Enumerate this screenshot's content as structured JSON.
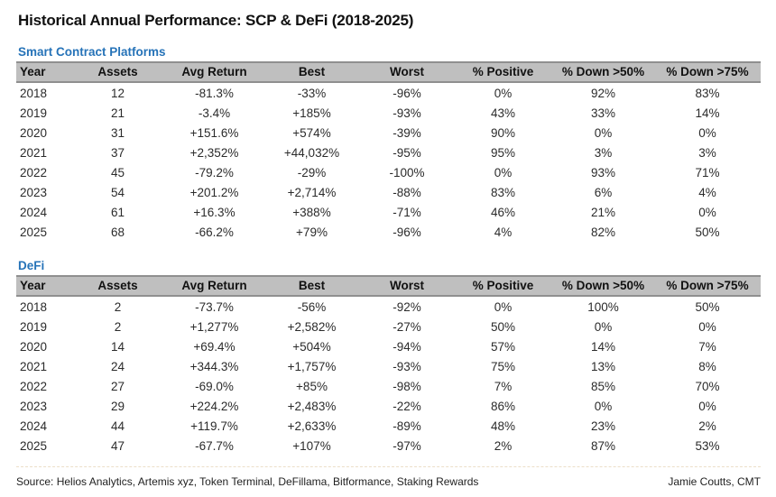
{
  "title": "Historical Annual Performance: SCP & DeFi (2018-2025)",
  "colors": {
    "section_blue": "#2673b8",
    "negative_red": "#e93e4d",
    "positive_green": "#2f9e4f",
    "header_bg": "#bfbfbf",
    "header_border": "#8f8f8f"
  },
  "chart_data": [
    {
      "type": "table",
      "title": "Smart Contract Platforms",
      "columns": [
        "Year",
        "Assets",
        "Avg Return",
        "Best",
        "Worst",
        "% Positive",
        "% Down >50%",
        "% Down >75%"
      ],
      "signed_columns": [
        2,
        3,
        4
      ],
      "rows": [
        [
          "2018",
          "12",
          "-81.3%",
          "-33%",
          "-96%",
          "0%",
          "92%",
          "83%"
        ],
        [
          "2019",
          "21",
          "-3.4%",
          "+185%",
          "-93%",
          "43%",
          "33%",
          "14%"
        ],
        [
          "2020",
          "31",
          "+151.6%",
          "+574%",
          "-39%",
          "90%",
          "0%",
          "0%"
        ],
        [
          "2021",
          "37",
          "+2,352%",
          "+44,032%",
          "-95%",
          "95%",
          "3%",
          "3%"
        ],
        [
          "2022",
          "45",
          "-79.2%",
          "-29%",
          "-100%",
          "0%",
          "93%",
          "71%"
        ],
        [
          "2023",
          "54",
          "+201.2%",
          "+2,714%",
          "-88%",
          "83%",
          "6%",
          "4%"
        ],
        [
          "2024",
          "61",
          "+16.3%",
          "+388%",
          "-71%",
          "46%",
          "21%",
          "0%"
        ],
        [
          "2025",
          "68",
          "-66.2%",
          "+79%",
          "-96%",
          "4%",
          "82%",
          "50%"
        ]
      ]
    },
    {
      "type": "table",
      "title": "DeFi",
      "columns": [
        "Year",
        "Assets",
        "Avg Return",
        "Best",
        "Worst",
        "% Positive",
        "% Down >50%",
        "% Down >75%"
      ],
      "signed_columns": [
        2,
        3,
        4
      ],
      "rows": [
        [
          "2018",
          "2",
          "-73.7%",
          "-56%",
          "-92%",
          "0%",
          "100%",
          "50%"
        ],
        [
          "2019",
          "2",
          "+1,277%",
          "+2,582%",
          "-27%",
          "50%",
          "0%",
          "0%"
        ],
        [
          "2020",
          "14",
          "+69.4%",
          "+504%",
          "-94%",
          "57%",
          "14%",
          "7%"
        ],
        [
          "2021",
          "24",
          "+344.3%",
          "+1,757%",
          "-93%",
          "75%",
          "13%",
          "8%"
        ],
        [
          "2022",
          "27",
          "-69.0%",
          "+85%",
          "-98%",
          "7%",
          "85%",
          "70%"
        ],
        [
          "2023",
          "29",
          "+224.2%",
          "+2,483%",
          "-22%",
          "86%",
          "0%",
          "0%"
        ],
        [
          "2024",
          "44",
          "+119.7%",
          "+2,633%",
          "-89%",
          "48%",
          "23%",
          "2%"
        ],
        [
          "2025",
          "47",
          "-67.7%",
          "+107%",
          "-97%",
          "2%",
          "87%",
          "53%"
        ]
      ]
    }
  ],
  "column_widths": [
    "60px",
    "105px",
    "109px",
    "107px",
    "104px",
    "109px",
    "113px",
    "118px"
  ],
  "footer": {
    "source": "Source: Helios Analytics, Artemis xyz, Token Terminal, DeFillama, Bitformance, Staking Rewards",
    "credit": "Jamie Coutts, CMT"
  }
}
